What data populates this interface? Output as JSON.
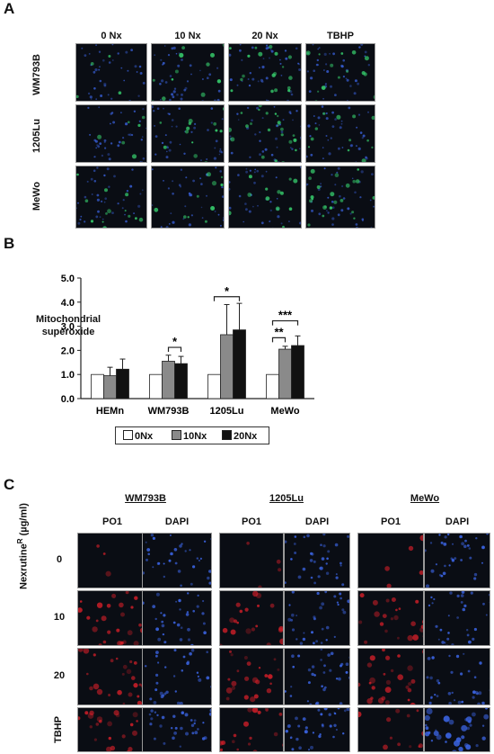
{
  "panelA": {
    "letter": "A",
    "columns": [
      "0 Nx",
      "10 Nx",
      "20 Nx",
      "TBHP"
    ],
    "rows": [
      "WM793B",
      "1205Lu",
      "MeWo"
    ]
  },
  "panelB": {
    "letter": "B",
    "chart_data": {
      "type": "bar",
      "ylabel": "Mitochondrial superoxide",
      "ylabel_lines": [
        "Mitochondrial",
        "superoxide"
      ],
      "ylim": [
        0,
        5
      ],
      "yticks": [
        "0.0",
        "1.0",
        "2.0",
        "3.0",
        "4.0",
        "5.0"
      ],
      "categories": [
        "HEMn",
        "WM793B",
        "1205Lu",
        "MeWo"
      ],
      "series": [
        {
          "name": "0Nx",
          "color": "#ffffff",
          "values": [
            1.0,
            1.0,
            1.0,
            1.0
          ],
          "errors": [
            0,
            0,
            0,
            0
          ]
        },
        {
          "name": "10Nx",
          "color": "#8a8a8a",
          "values": [
            0.95,
            1.55,
            2.65,
            2.05
          ],
          "errors": [
            0.35,
            0.25,
            1.25,
            0.12
          ]
        },
        {
          "name": "20Nx",
          "color": "#111111",
          "values": [
            1.22,
            1.45,
            2.85,
            2.2
          ],
          "errors": [
            0.42,
            0.3,
            1.1,
            0.4
          ]
        }
      ],
      "annotations": [
        {
          "category": "WM793B",
          "text": "*"
        },
        {
          "category": "1205Lu",
          "text": "*"
        },
        {
          "category": "MeWo",
          "text": "**"
        },
        {
          "category": "MeWo",
          "text": "***"
        }
      ],
      "legend_position": "bottom"
    }
  },
  "panelC": {
    "letter": "C",
    "groups": [
      "WM793B",
      "1205Lu",
      "MeWo"
    ],
    "stains": [
      "PO1",
      "DAPI"
    ],
    "rows": [
      "0",
      "10",
      "20",
      "TBHP"
    ],
    "ylabel_main": "Nexrutine",
    "ylabel_sup": "R",
    "ylabel_unit": " (µg/ml)"
  },
  "colors": {
    "micro_bg": "#0a0d14",
    "green": "#35c86a",
    "blue": "#3a63e0",
    "red": "#e0202a"
  }
}
